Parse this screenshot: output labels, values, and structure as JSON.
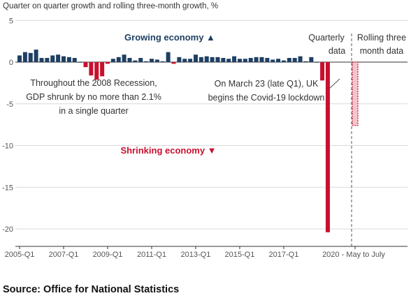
{
  "chart_data": {
    "type": "bar",
    "subtitle": "Quarter on quarter growth and rolling three-month growth, %",
    "ylim": [
      -21,
      5
    ],
    "yticks": [
      5,
      0,
      -5,
      -10,
      -15,
      -20
    ],
    "xtick_labels": [
      "2005-Q1",
      "2007-Q1",
      "2009-Q1",
      "2011-Q1",
      "2013-Q1",
      "2015-Q1",
      "2017-Q1",
      "2020 - May to July"
    ],
    "grid": true,
    "series": [
      {
        "name": "Quarterly data",
        "values": [
          0.8,
          1.2,
          1.1,
          1.5,
          0.5,
          0.5,
          0.8,
          0.9,
          0.7,
          0.6,
          0.5,
          0.0,
          -0.6,
          -1.6,
          -2.1,
          -1.7,
          -0.2,
          0.4,
          0.6,
          0.9,
          0.5,
          0.2,
          0.5,
          0.1,
          0.4,
          0.3,
          0.1,
          1.2,
          -0.2,
          0.6,
          0.4,
          0.4,
          0.9,
          0.6,
          0.7,
          0.6,
          0.6,
          0.5,
          0.4,
          0.7,
          0.4,
          0.4,
          0.5,
          0.6,
          0.6,
          0.5,
          0.3,
          0.4,
          0.2,
          0.5,
          0.5,
          0.7,
          0.1,
          0.6,
          0.0,
          -2.2,
          -20.4
        ]
      },
      {
        "name": "Rolling three month data",
        "values": [
          -7.6
        ]
      }
    ],
    "annotations": {
      "growing": "Growing economy ▲",
      "shrinking": "Shrinking economy ▼",
      "recession": [
        "Throughout the 2008 Recession,",
        "GDP shrunk by no more than 2.1%",
        "in a single quarter"
      ],
      "covid": [
        "On March 23 (late Q1), UK",
        "begins the Covid-19 lockdown"
      ],
      "quarterly_label": [
        "Quarterly",
        "data"
      ],
      "rolling_label": [
        "Rolling three",
        "month data"
      ]
    },
    "colors": {
      "positive": "#1f3f63",
      "negative": "#c8102e",
      "rolling": "#c8102e"
    }
  },
  "source": "Source: Office for National Statistics"
}
